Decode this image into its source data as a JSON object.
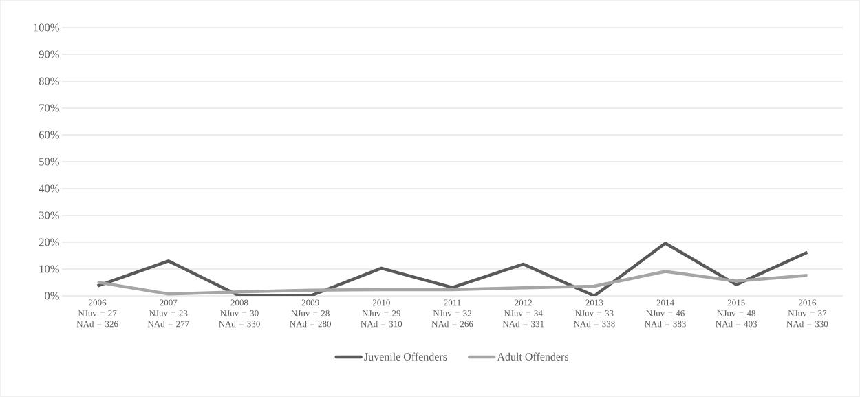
{
  "chart_data": {
    "type": "line",
    "categories": [
      "2006\nNJuv = 27\nNAd = 326",
      "2007\nNJuv = 23\nNAd = 277",
      "2008\nNJuv = 30\nNAd = 330",
      "2009\nNJuv = 28\nNAd = 280",
      "2010\nNJuv = 29\nNAd = 310",
      "2011\nNJuv = 32\nNAd = 266",
      "2012\nNJuv = 34\nNAd = 331",
      "2013\nNJuv = 33\nNAd = 338",
      "2014\nNJuv = 46\nNAd = 383",
      "2015\nNJuv = 48\nNAd = 403",
      "2016\nNJuv = 37\nNAd = 330"
    ],
    "series": [
      {
        "name": "Juvenile Offenders",
        "color": "#595959",
        "values": [
          3.7,
          13.0,
          0,
          0,
          10.3,
          3.1,
          11.8,
          0,
          19.6,
          4.2,
          16.2
        ]
      },
      {
        "name": "Adult Offenders",
        "color": "#a6a6a6",
        "values": [
          5.1,
          0.7,
          1.5,
          2.1,
          2.3,
          2.3,
          3.0,
          3.6,
          9.1,
          5.5,
          7.6
        ]
      }
    ],
    "ylim": [
      0,
      100
    ],
    "yticks": [
      {
        "value": 0,
        "label": "0%"
      },
      {
        "value": 10,
        "label": "10%"
      },
      {
        "value": 20,
        "label": "20%"
      },
      {
        "value": 30,
        "label": "30%"
      },
      {
        "value": 40,
        "label": "40%"
      },
      {
        "value": 50,
        "label": "50%"
      },
      {
        "value": 60,
        "label": "60%"
      },
      {
        "value": 70,
        "label": "70%"
      },
      {
        "value": 80,
        "label": "80%"
      },
      {
        "value": 90,
        "label": "90%"
      },
      {
        "value": 100,
        "label": "100%"
      }
    ],
    "grid": "y",
    "legend": "bottom",
    "marker": "none",
    "line_style": "solid"
  }
}
